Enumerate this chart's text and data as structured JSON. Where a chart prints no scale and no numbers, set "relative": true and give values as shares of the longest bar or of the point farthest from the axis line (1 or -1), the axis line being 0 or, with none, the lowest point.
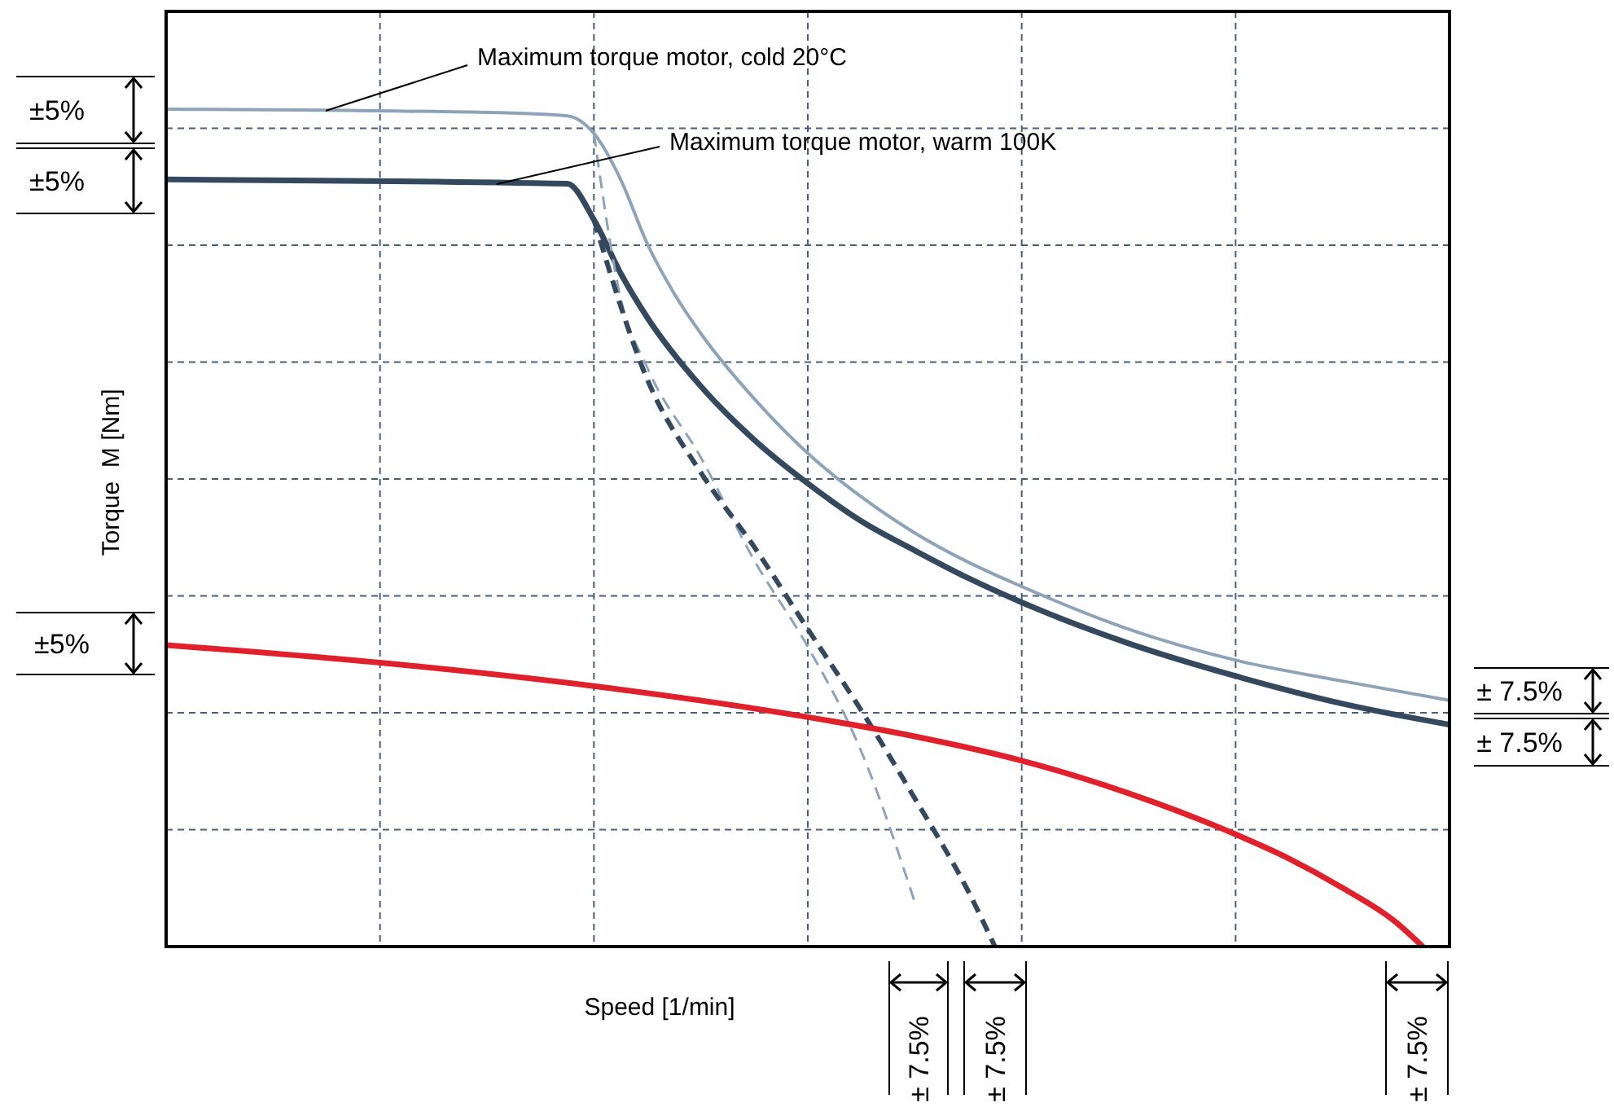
{
  "chart_data": {
    "type": "line",
    "relative": true,
    "grid": true,
    "xlabel": "Speed [1/min]",
    "ylabel": "Torque  M [Nm]",
    "categories": [
      null,
      null,
      null,
      null,
      null,
      null,
      null,
      null,
      null,
      null,
      null,
      null,
      null,
      null,
      null,
      null,
      null,
      null,
      null,
      null,
      null,
      null,
      null,
      null,
      null,
      null,
      null,
      null,
      null,
      null,
      null,
      null,
      null,
      null,
      null,
      null,
      null,
      null,
      null,
      null,
      null,
      null,
      null,
      null,
      null,
      null,
      null,
      null,
      null
    ],
    "series": [
      {
        "name": "Maximum torque motor, cold 20°C",
        "color": "#8ea3b8",
        "line_style": "solid",
        "values": [
          1.0,
          null,
          null,
          null,
          null,
          null,
          null,
          null,
          null,
          null,
          null,
          null,
          0.996,
          null,
          null,
          0.992,
          0.971,
          0.916,
          0.839,
          0.78,
          0.732,
          null,
          0.654,
          null,
          0.589,
          null,
          0.537,
          null,
          0.494,
          null,
          0.459,
          null,
          0.43,
          null,
          null,
          null,
          0.379,
          null,
          null,
          null,
          0.342,
          null,
          null,
          null,
          0.317,
          null,
          null,
          null,
          0.294
        ]
      },
      {
        "name": "Maximum torque motor, warm 100K",
        "color": "#34495e",
        "line_style": "solid",
        "values": [
          0.916,
          null,
          null,
          null,
          null,
          null,
          null,
          null,
          null,
          null,
          null,
          null,
          null,
          null,
          null,
          0.911,
          0.868,
          0.804,
          0.751,
          null,
          0.669,
          null,
          0.605,
          null,
          0.553,
          null,
          0.508,
          null,
          0.473,
          null,
          0.44,
          null,
          0.411,
          null,
          null,
          null,
          0.362,
          null,
          null,
          null,
          0.323,
          null,
          null,
          null,
          0.29,
          null,
          null,
          null,
          0.265
        ]
      },
      {
        "color": "#8ea3b8",
        "line_style": "dashed",
        "values": [
          null,
          null,
          null,
          null,
          null,
          null,
          null,
          null,
          null,
          null,
          null,
          null,
          null,
          null,
          null,
          null,
          0.971,
          0.774,
          0.691,
          null,
          0.584,
          null,
          0.461,
          null,
          0.358,
          null,
          0.233,
          null,
          0.053,
          null,
          null,
          null,
          null,
          null,
          null,
          null,
          null,
          null,
          null,
          null,
          null,
          null,
          null,
          null,
          null,
          null,
          null,
          null,
          null
        ]
      },
      {
        "color": "#34495e",
        "line_style": "dashed",
        "values": [
          null,
          null,
          null,
          null,
          null,
          null,
          null,
          null,
          null,
          null,
          null,
          null,
          null,
          null,
          null,
          null,
          0.868,
          null,
          0.677,
          null,
          0.566,
          null,
          0.477,
          null,
          0.379,
          null,
          0.282,
          null,
          0.177,
          null,
          0.066,
          0,
          null,
          null,
          null,
          null,
          null,
          null,
          null,
          null,
          null,
          null,
          null,
          null,
          null,
          null,
          null,
          null,
          null
        ]
      },
      {
        "color": "#e0202a",
        "line_style": "solid",
        "values": [
          0.36,
          null,
          null,
          null,
          null,
          null,
          null,
          null,
          0.339,
          null,
          null,
          null,
          null,
          null,
          null,
          null,
          0.311,
          null,
          null,
          null,
          null,
          null,
          null,
          null,
          0.274,
          null,
          null,
          null,
          0.251,
          null,
          null,
          null,
          0.222,
          null,
          null,
          null,
          0.183,
          null,
          null,
          null,
          0.134,
          null,
          0.105,
          null,
          0.07,
          null,
          0.029,
          0,
          null
        ]
      }
    ],
    "annotations": [
      "±5%",
      "±5%",
      "±5%",
      "± 7.5%",
      "± 7.5%",
      "± 7.5%",
      "± 7.5%",
      "± 7.5%"
    ]
  }
}
